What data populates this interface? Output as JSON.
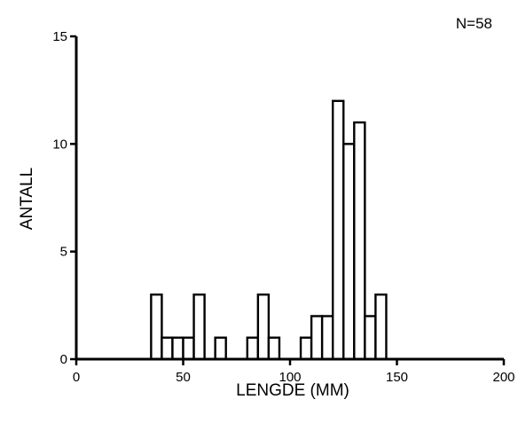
{
  "chart_data": {
    "type": "bar",
    "title": "",
    "xlabel": "LENGDE (MM)",
    "ylabel": "ANTALL",
    "annotation": "N=58",
    "xlim": [
      0,
      200
    ],
    "ylim": [
      0,
      15
    ],
    "xticks": [
      0,
      50,
      100,
      150,
      200
    ],
    "yticks": [
      0,
      5,
      10,
      15
    ],
    "bin_width": 5,
    "grid": false,
    "legend": "none",
    "bins": [
      {
        "x0": 35,
        "x1": 40,
        "count": 3
      },
      {
        "x0": 40,
        "x1": 45,
        "count": 1
      },
      {
        "x0": 45,
        "x1": 50,
        "count": 1
      },
      {
        "x0": 50,
        "x1": 55,
        "count": 1
      },
      {
        "x0": 55,
        "x1": 60,
        "count": 3
      },
      {
        "x0": 65,
        "x1": 70,
        "count": 1
      },
      {
        "x0": 80,
        "x1": 85,
        "count": 1
      },
      {
        "x0": 85,
        "x1": 90,
        "count": 3
      },
      {
        "x0": 90,
        "x1": 95,
        "count": 1
      },
      {
        "x0": 105,
        "x1": 110,
        "count": 1
      },
      {
        "x0": 110,
        "x1": 115,
        "count": 2
      },
      {
        "x0": 115,
        "x1": 120,
        "count": 2
      },
      {
        "x0": 120,
        "x1": 125,
        "count": 12
      },
      {
        "x0": 125,
        "x1": 130,
        "count": 10
      },
      {
        "x0": 130,
        "x1": 135,
        "count": 11
      },
      {
        "x0": 135,
        "x1": 140,
        "count": 2
      },
      {
        "x0": 140,
        "x1": 145,
        "count": 3
      }
    ]
  }
}
